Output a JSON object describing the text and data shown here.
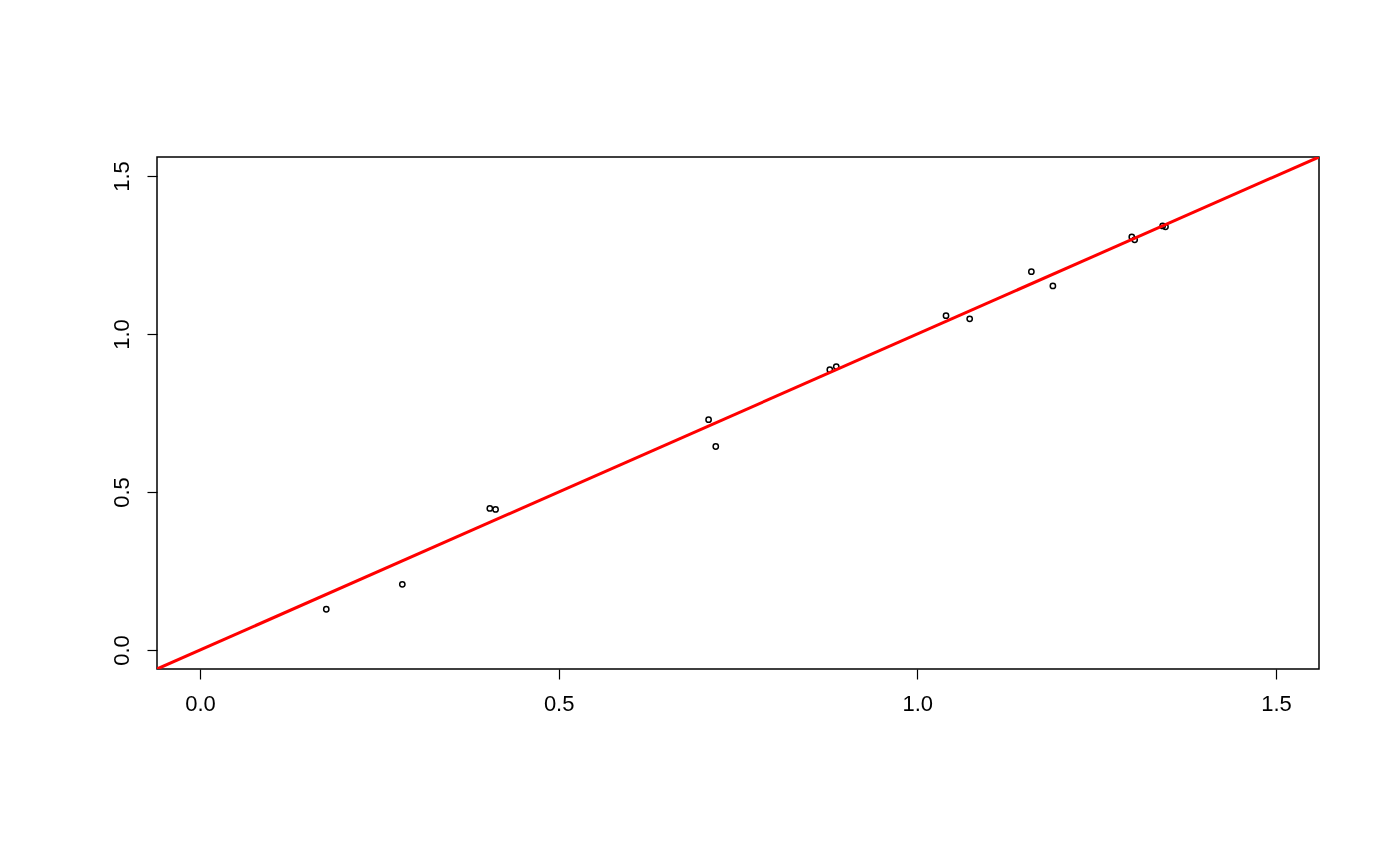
{
  "chart_data": {
    "type": "scatter",
    "marker": "circle",
    "grid": false,
    "xlim": [
      -0.06,
      1.56
    ],
    "ylim": [
      -0.06,
      1.56
    ],
    "xticks": [
      {
        "value": 0,
        "label": "0.0"
      },
      {
        "value": 0.5,
        "label": "0.5"
      },
      {
        "value": 1,
        "label": "1.0"
      },
      {
        "value": 1.5,
        "label": "1.5"
      }
    ],
    "yticks": [
      {
        "value": 0,
        "label": "0.0"
      },
      {
        "value": 0.5,
        "label": "0.5"
      },
      {
        "value": 1,
        "label": "1.0"
      },
      {
        "value": 1.5,
        "label": "1.5"
      }
    ],
    "series": [
      {
        "color": "#000000",
        "x": [
          0.176,
          0.282,
          0.404,
          0.412,
          0.709,
          0.719,
          0.878,
          0.887,
          1.04,
          1.073,
          1.159,
          1.189,
          1.299,
          1.303,
          1.342,
          1.346
        ],
        "values": [
          0.129,
          0.208,
          0.448,
          0.445,
          0.729,
          0.644,
          0.887,
          0.897,
          1.058,
          1.048,
          1.197,
          1.152,
          1.307,
          1.298,
          1.342,
          1.339
        ]
      },
      {
        "type": "line",
        "marker": "none",
        "color": "#ff0000",
        "x": [
          -0.06,
          1.56
        ],
        "values": [
          -0.06,
          1.56
        ]
      }
    ]
  }
}
